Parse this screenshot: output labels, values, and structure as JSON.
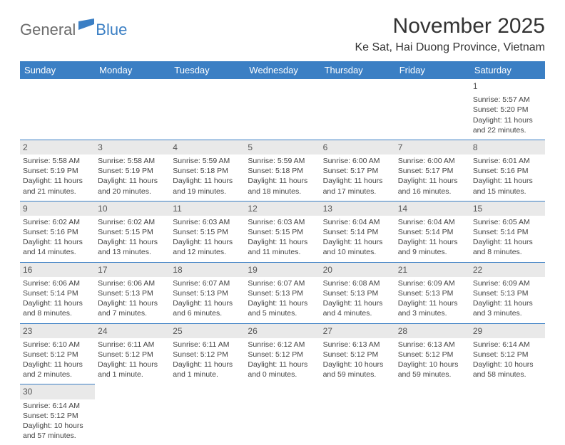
{
  "logo": {
    "general": "General",
    "blue": "Blue"
  },
  "title": "November 2025",
  "location": "Ke Sat, Hai Duong Province, Vietnam",
  "colors": {
    "header_bg": "#3b7fc4",
    "header_text": "#ffffff",
    "daynum_bg": "#e9e9e9",
    "border": "#3b7fc4",
    "text": "#444444"
  },
  "weekdays": [
    "Sunday",
    "Monday",
    "Tuesday",
    "Wednesday",
    "Thursday",
    "Friday",
    "Saturday"
  ],
  "weeks": [
    [
      null,
      null,
      null,
      null,
      null,
      null,
      {
        "n": "1",
        "sr": "Sunrise: 5:57 AM",
        "ss": "Sunset: 5:20 PM",
        "dl": "Daylight: 11 hours and 22 minutes."
      }
    ],
    [
      {
        "n": "2",
        "sr": "Sunrise: 5:58 AM",
        "ss": "Sunset: 5:19 PM",
        "dl": "Daylight: 11 hours and 21 minutes."
      },
      {
        "n": "3",
        "sr": "Sunrise: 5:58 AM",
        "ss": "Sunset: 5:19 PM",
        "dl": "Daylight: 11 hours and 20 minutes."
      },
      {
        "n": "4",
        "sr": "Sunrise: 5:59 AM",
        "ss": "Sunset: 5:18 PM",
        "dl": "Daylight: 11 hours and 19 minutes."
      },
      {
        "n": "5",
        "sr": "Sunrise: 5:59 AM",
        "ss": "Sunset: 5:18 PM",
        "dl": "Daylight: 11 hours and 18 minutes."
      },
      {
        "n": "6",
        "sr": "Sunrise: 6:00 AM",
        "ss": "Sunset: 5:17 PM",
        "dl": "Daylight: 11 hours and 17 minutes."
      },
      {
        "n": "7",
        "sr": "Sunrise: 6:00 AM",
        "ss": "Sunset: 5:17 PM",
        "dl": "Daylight: 11 hours and 16 minutes."
      },
      {
        "n": "8",
        "sr": "Sunrise: 6:01 AM",
        "ss": "Sunset: 5:16 PM",
        "dl": "Daylight: 11 hours and 15 minutes."
      }
    ],
    [
      {
        "n": "9",
        "sr": "Sunrise: 6:02 AM",
        "ss": "Sunset: 5:16 PM",
        "dl": "Daylight: 11 hours and 14 minutes."
      },
      {
        "n": "10",
        "sr": "Sunrise: 6:02 AM",
        "ss": "Sunset: 5:15 PM",
        "dl": "Daylight: 11 hours and 13 minutes."
      },
      {
        "n": "11",
        "sr": "Sunrise: 6:03 AM",
        "ss": "Sunset: 5:15 PM",
        "dl": "Daylight: 11 hours and 12 minutes."
      },
      {
        "n": "12",
        "sr": "Sunrise: 6:03 AM",
        "ss": "Sunset: 5:15 PM",
        "dl": "Daylight: 11 hours and 11 minutes."
      },
      {
        "n": "13",
        "sr": "Sunrise: 6:04 AM",
        "ss": "Sunset: 5:14 PM",
        "dl": "Daylight: 11 hours and 10 minutes."
      },
      {
        "n": "14",
        "sr": "Sunrise: 6:04 AM",
        "ss": "Sunset: 5:14 PM",
        "dl": "Daylight: 11 hours and 9 minutes."
      },
      {
        "n": "15",
        "sr": "Sunrise: 6:05 AM",
        "ss": "Sunset: 5:14 PM",
        "dl": "Daylight: 11 hours and 8 minutes."
      }
    ],
    [
      {
        "n": "16",
        "sr": "Sunrise: 6:06 AM",
        "ss": "Sunset: 5:14 PM",
        "dl": "Daylight: 11 hours and 8 minutes."
      },
      {
        "n": "17",
        "sr": "Sunrise: 6:06 AM",
        "ss": "Sunset: 5:13 PM",
        "dl": "Daylight: 11 hours and 7 minutes."
      },
      {
        "n": "18",
        "sr": "Sunrise: 6:07 AM",
        "ss": "Sunset: 5:13 PM",
        "dl": "Daylight: 11 hours and 6 minutes."
      },
      {
        "n": "19",
        "sr": "Sunrise: 6:07 AM",
        "ss": "Sunset: 5:13 PM",
        "dl": "Daylight: 11 hours and 5 minutes."
      },
      {
        "n": "20",
        "sr": "Sunrise: 6:08 AM",
        "ss": "Sunset: 5:13 PM",
        "dl": "Daylight: 11 hours and 4 minutes."
      },
      {
        "n": "21",
        "sr": "Sunrise: 6:09 AM",
        "ss": "Sunset: 5:13 PM",
        "dl": "Daylight: 11 hours and 3 minutes."
      },
      {
        "n": "22",
        "sr": "Sunrise: 6:09 AM",
        "ss": "Sunset: 5:13 PM",
        "dl": "Daylight: 11 hours and 3 minutes."
      }
    ],
    [
      {
        "n": "23",
        "sr": "Sunrise: 6:10 AM",
        "ss": "Sunset: 5:12 PM",
        "dl": "Daylight: 11 hours and 2 minutes."
      },
      {
        "n": "24",
        "sr": "Sunrise: 6:11 AM",
        "ss": "Sunset: 5:12 PM",
        "dl": "Daylight: 11 hours and 1 minute."
      },
      {
        "n": "25",
        "sr": "Sunrise: 6:11 AM",
        "ss": "Sunset: 5:12 PM",
        "dl": "Daylight: 11 hours and 1 minute."
      },
      {
        "n": "26",
        "sr": "Sunrise: 6:12 AM",
        "ss": "Sunset: 5:12 PM",
        "dl": "Daylight: 11 hours and 0 minutes."
      },
      {
        "n": "27",
        "sr": "Sunrise: 6:13 AM",
        "ss": "Sunset: 5:12 PM",
        "dl": "Daylight: 10 hours and 59 minutes."
      },
      {
        "n": "28",
        "sr": "Sunrise: 6:13 AM",
        "ss": "Sunset: 5:12 PM",
        "dl": "Daylight: 10 hours and 59 minutes."
      },
      {
        "n": "29",
        "sr": "Sunrise: 6:14 AM",
        "ss": "Sunset: 5:12 PM",
        "dl": "Daylight: 10 hours and 58 minutes."
      }
    ],
    [
      {
        "n": "30",
        "sr": "Sunrise: 6:14 AM",
        "ss": "Sunset: 5:12 PM",
        "dl": "Daylight: 10 hours and 57 minutes."
      },
      null,
      null,
      null,
      null,
      null,
      null
    ]
  ]
}
